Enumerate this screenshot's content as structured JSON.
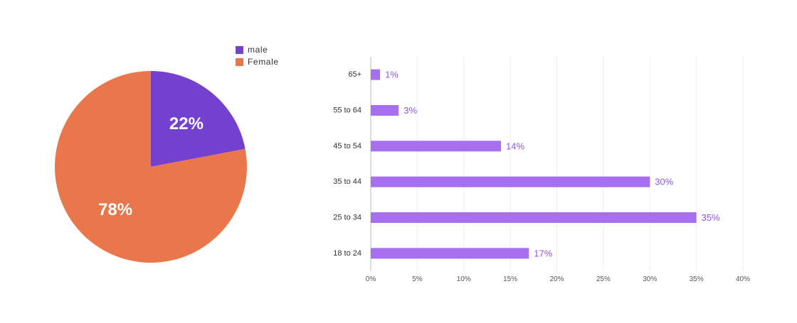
{
  "colors": {
    "male": "#7440d0",
    "female": "#ea774c",
    "bar": "#a66ff0",
    "bar_label": "#9055e0",
    "grid": "#eeeeee",
    "axis": "#bbbbbb"
  },
  "chart_data": [
    {
      "type": "pie",
      "legend": [
        "male",
        "Female"
      ],
      "legend_position": "top-right",
      "slices": [
        {
          "name": "male",
          "value": 22,
          "label": "22%"
        },
        {
          "name": "Female",
          "value": 78,
          "label": "78%"
        }
      ]
    },
    {
      "type": "bar",
      "orientation": "horizontal",
      "categories": [
        "65+",
        "55 to 64",
        "45 to 54",
        "35 to 44",
        "25 to 34",
        "18 to 24"
      ],
      "values": [
        1,
        3,
        14,
        30,
        35,
        17
      ],
      "value_labels": [
        "1%",
        "3%",
        "14%",
        "30%",
        "35%",
        "17%"
      ],
      "xlim": [
        0,
        40
      ],
      "xticks": [
        0,
        5,
        10,
        15,
        20,
        25,
        30,
        35,
        40
      ],
      "xtick_labels": [
        "0%",
        "5%",
        "10%",
        "15%",
        "20%",
        "25%",
        "30%",
        "35%",
        "40%"
      ],
      "grid": true
    }
  ]
}
